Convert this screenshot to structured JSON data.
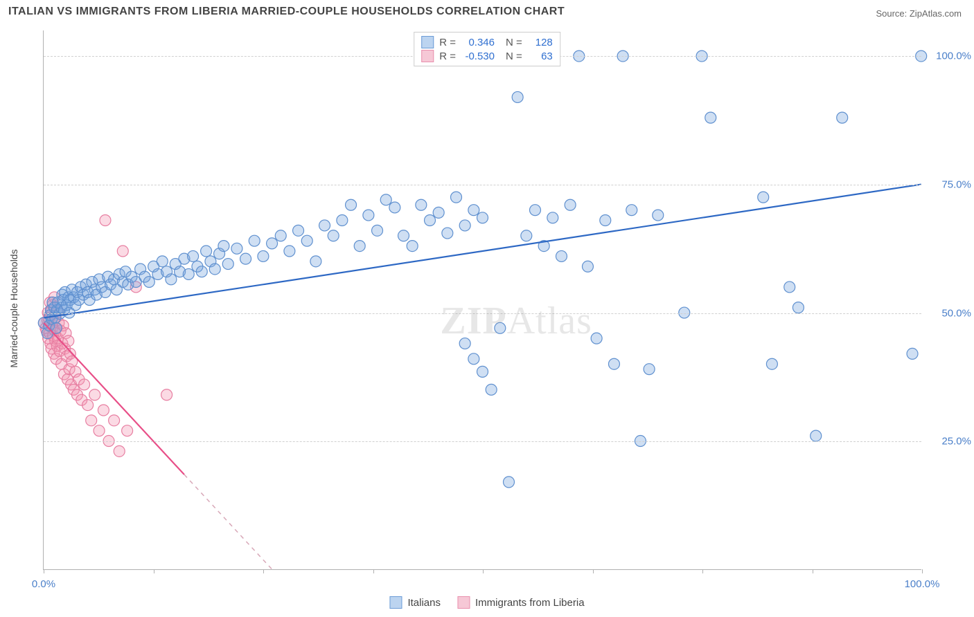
{
  "title": "ITALIAN VS IMMIGRANTS FROM LIBERIA MARRIED-COUPLE HOUSEHOLDS CORRELATION CHART",
  "source_label": "Source: ZipAtlas.com",
  "watermark": {
    "left": "ZIP",
    "right": "Atlas"
  },
  "y_axis_title": "Married-couple Households",
  "colors": {
    "series_a_fill": "rgba(118,164,222,0.35)",
    "series_a_stroke": "#5f90cf",
    "series_a_swatch_fill": "#bcd4f0",
    "series_a_swatch_border": "#6b9bd6",
    "series_b_fill": "rgba(244,150,178,0.35)",
    "series_b_stroke": "#e77ea1",
    "series_b_swatch_fill": "#f6c8d6",
    "series_b_swatch_border": "#e98fad",
    "trend_a": "#2d68c4",
    "trend_b": "#e84f88",
    "tick_label": "#4a7fc9",
    "grid": "#d0d0d0"
  },
  "chart": {
    "type": "scatter",
    "xlim": [
      0,
      100
    ],
    "ylim": [
      0,
      105
    ],
    "x_ticks": [
      0,
      12.5,
      25,
      37.5,
      50,
      62.5,
      75,
      87.5,
      100
    ],
    "x_tick_labels": {
      "0": "0.0%",
      "100": "100.0%"
    },
    "y_gridlines": [
      25,
      50,
      75,
      100
    ],
    "y_tick_labels": {
      "25": "25.0%",
      "50": "50.0%",
      "75": "75.0%",
      "100": "100.0%"
    },
    "marker_radius": 8,
    "marker_stroke_width": 1.2,
    "trend_line_width": 2.2
  },
  "stats_box": {
    "rows": [
      {
        "swatch": "a",
        "r_label": "R =",
        "r": "0.346",
        "n_label": "N =",
        "n": "128"
      },
      {
        "swatch": "b",
        "r_label": "R =",
        "r": "-0.530",
        "n_label": "N =",
        "n": "63"
      }
    ]
  },
  "bottom_legend": [
    {
      "swatch": "a",
      "label": "Italians"
    },
    {
      "swatch": "b",
      "label": "Immigrants from Liberia"
    }
  ],
  "series_a": {
    "name": "Italians",
    "trend": {
      "x1": 0,
      "y1": 49,
      "x2": 100,
      "y2": 75
    },
    "points": [
      [
        0,
        48
      ],
      [
        0.4,
        46
      ],
      [
        0.6,
        47.5
      ],
      [
        0.7,
        49.5
      ],
      [
        0.8,
        50.5
      ],
      [
        0.9,
        48.8
      ],
      [
        1,
        52
      ],
      [
        1.2,
        51
      ],
      [
        1.3,
        49
      ],
      [
        1.4,
        47
      ],
      [
        1.5,
        50.5
      ],
      [
        1.6,
        52
      ],
      [
        1.8,
        49.8
      ],
      [
        2,
        51
      ],
      [
        2.1,
        53.5
      ],
      [
        2.2,
        52.5
      ],
      [
        2.3,
        50.5
      ],
      [
        2.4,
        54
      ],
      [
        2.6,
        51.5
      ],
      [
        2.8,
        53
      ],
      [
        2.9,
        50
      ],
      [
        3,
        52.5
      ],
      [
        3.2,
        54.5
      ],
      [
        3.4,
        53
      ],
      [
        3.6,
        51.5
      ],
      [
        3.8,
        54
      ],
      [
        4,
        52.5
      ],
      [
        4.2,
        55
      ],
      [
        4.5,
        53.5
      ],
      [
        4.8,
        55.5
      ],
      [
        5,
        54
      ],
      [
        5.2,
        52.5
      ],
      [
        5.5,
        56
      ],
      [
        5.8,
        54.5
      ],
      [
        6,
        53.5
      ],
      [
        6.3,
        56.5
      ],
      [
        6.6,
        55
      ],
      [
        7,
        54
      ],
      [
        7.3,
        57
      ],
      [
        7.6,
        55.5
      ],
      [
        8,
        56.5
      ],
      [
        8.3,
        54.5
      ],
      [
        8.6,
        57.5
      ],
      [
        9,
        56
      ],
      [
        9.3,
        58
      ],
      [
        9.6,
        55.5
      ],
      [
        10,
        57
      ],
      [
        10.5,
        56
      ],
      [
        11,
        58.5
      ],
      [
        11.5,
        57
      ],
      [
        12,
        56
      ],
      [
        12.5,
        59
      ],
      [
        13,
        57.5
      ],
      [
        13.5,
        60
      ],
      [
        14,
        58
      ],
      [
        14.5,
        56.5
      ],
      [
        15,
        59.5
      ],
      [
        15.5,
        58
      ],
      [
        16,
        60.5
      ],
      [
        16.5,
        57.5
      ],
      [
        17,
        61
      ],
      [
        17.5,
        59
      ],
      [
        18,
        58
      ],
      [
        18.5,
        62
      ],
      [
        19,
        60
      ],
      [
        19.5,
        58.5
      ],
      [
        20,
        61.5
      ],
      [
        20.5,
        63
      ],
      [
        21,
        59.5
      ],
      [
        22,
        62.5
      ],
      [
        23,
        60.5
      ],
      [
        24,
        64
      ],
      [
        25,
        61
      ],
      [
        26,
        63.5
      ],
      [
        27,
        65
      ],
      [
        28,
        62
      ],
      [
        29,
        66
      ],
      [
        30,
        64
      ],
      [
        31,
        60
      ],
      [
        32,
        67
      ],
      [
        33,
        65
      ],
      [
        34,
        68
      ],
      [
        35,
        71
      ],
      [
        36,
        63
      ],
      [
        37,
        69
      ],
      [
        38,
        66
      ],
      [
        39,
        72
      ],
      [
        40,
        70.5
      ],
      [
        41,
        65
      ],
      [
        42,
        63
      ],
      [
        43,
        71
      ],
      [
        44,
        68
      ],
      [
        45,
        69.5
      ],
      [
        46,
        65.5
      ],
      [
        47,
        72.5
      ],
      [
        48,
        67
      ],
      [
        49,
        70
      ],
      [
        50,
        68.5
      ],
      [
        48,
        44
      ],
      [
        49,
        41
      ],
      [
        50,
        38.5
      ],
      [
        51,
        35
      ],
      [
        52,
        47
      ],
      [
        53,
        17
      ],
      [
        54,
        92
      ],
      [
        55,
        65
      ],
      [
        55.5,
        100
      ],
      [
        56,
        70
      ],
      [
        57,
        63
      ],
      [
        58,
        68.5
      ],
      [
        59,
        61
      ],
      [
        60,
        71
      ],
      [
        61,
        100
      ],
      [
        62,
        59
      ],
      [
        63,
        45
      ],
      [
        64,
        68
      ],
      [
        65,
        40
      ],
      [
        66,
        100
      ],
      [
        67,
        70
      ],
      [
        68,
        25
      ],
      [
        69,
        39
      ],
      [
        70,
        69
      ],
      [
        73,
        50
      ],
      [
        75,
        100
      ],
      [
        76,
        88
      ],
      [
        82,
        72.5
      ],
      [
        83,
        40
      ],
      [
        85,
        55
      ],
      [
        86,
        51
      ],
      [
        88,
        26
      ],
      [
        91,
        88
      ],
      [
        99,
        42
      ],
      [
        100,
        100
      ]
    ]
  },
  "series_b": {
    "name": "Immigrants from Liberia",
    "trend": {
      "x1": 0,
      "y1": 48,
      "x2": 26,
      "y2": 0,
      "dash_after_x": 16
    },
    "points": [
      [
        0,
        48
      ],
      [
        0.2,
        47
      ],
      [
        0.3,
        46.5
      ],
      [
        0.4,
        48.5
      ],
      [
        0.45,
        50
      ],
      [
        0.5,
        45
      ],
      [
        0.55,
        49
      ],
      [
        0.6,
        47.5
      ],
      [
        0.65,
        46
      ],
      [
        0.7,
        52
      ],
      [
        0.75,
        44
      ],
      [
        0.8,
        49.5
      ],
      [
        0.85,
        43
      ],
      [
        0.9,
        50.5
      ],
      [
        0.95,
        47
      ],
      [
        1,
        51.5
      ],
      [
        1.05,
        45.5
      ],
      [
        1.1,
        48.5
      ],
      [
        1.15,
        42
      ],
      [
        1.2,
        53
      ],
      [
        1.25,
        46.5
      ],
      [
        1.3,
        44.5
      ],
      [
        1.35,
        49
      ],
      [
        1.4,
        41
      ],
      [
        1.45,
        47
      ],
      [
        1.5,
        43.5
      ],
      [
        1.55,
        50.5
      ],
      [
        1.6,
        45
      ],
      [
        1.7,
        48
      ],
      [
        1.8,
        42.5
      ],
      [
        1.9,
        46.5
      ],
      [
        2,
        40
      ],
      [
        2.1,
        44
      ],
      [
        2.2,
        47.5
      ],
      [
        2.3,
        38
      ],
      [
        2.4,
        43
      ],
      [
        2.5,
        46
      ],
      [
        2.6,
        41.5
      ],
      [
        2.7,
        37
      ],
      [
        2.8,
        44.5
      ],
      [
        2.9,
        39
      ],
      [
        3,
        42
      ],
      [
        3.1,
        36
      ],
      [
        3.2,
        40.5
      ],
      [
        3.4,
        35
      ],
      [
        3.6,
        38.5
      ],
      [
        3.8,
        34
      ],
      [
        4,
        37
      ],
      [
        4.3,
        33
      ],
      [
        4.6,
        36
      ],
      [
        5,
        32
      ],
      [
        5.4,
        29
      ],
      [
        5.8,
        34
      ],
      [
        6.3,
        27
      ],
      [
        6.8,
        31
      ],
      [
        7,
        68
      ],
      [
        7.4,
        25
      ],
      [
        8,
        29
      ],
      [
        8.6,
        23
      ],
      [
        9,
        62
      ],
      [
        9.5,
        27
      ],
      [
        10.5,
        55
      ],
      [
        14,
        34
      ]
    ]
  }
}
